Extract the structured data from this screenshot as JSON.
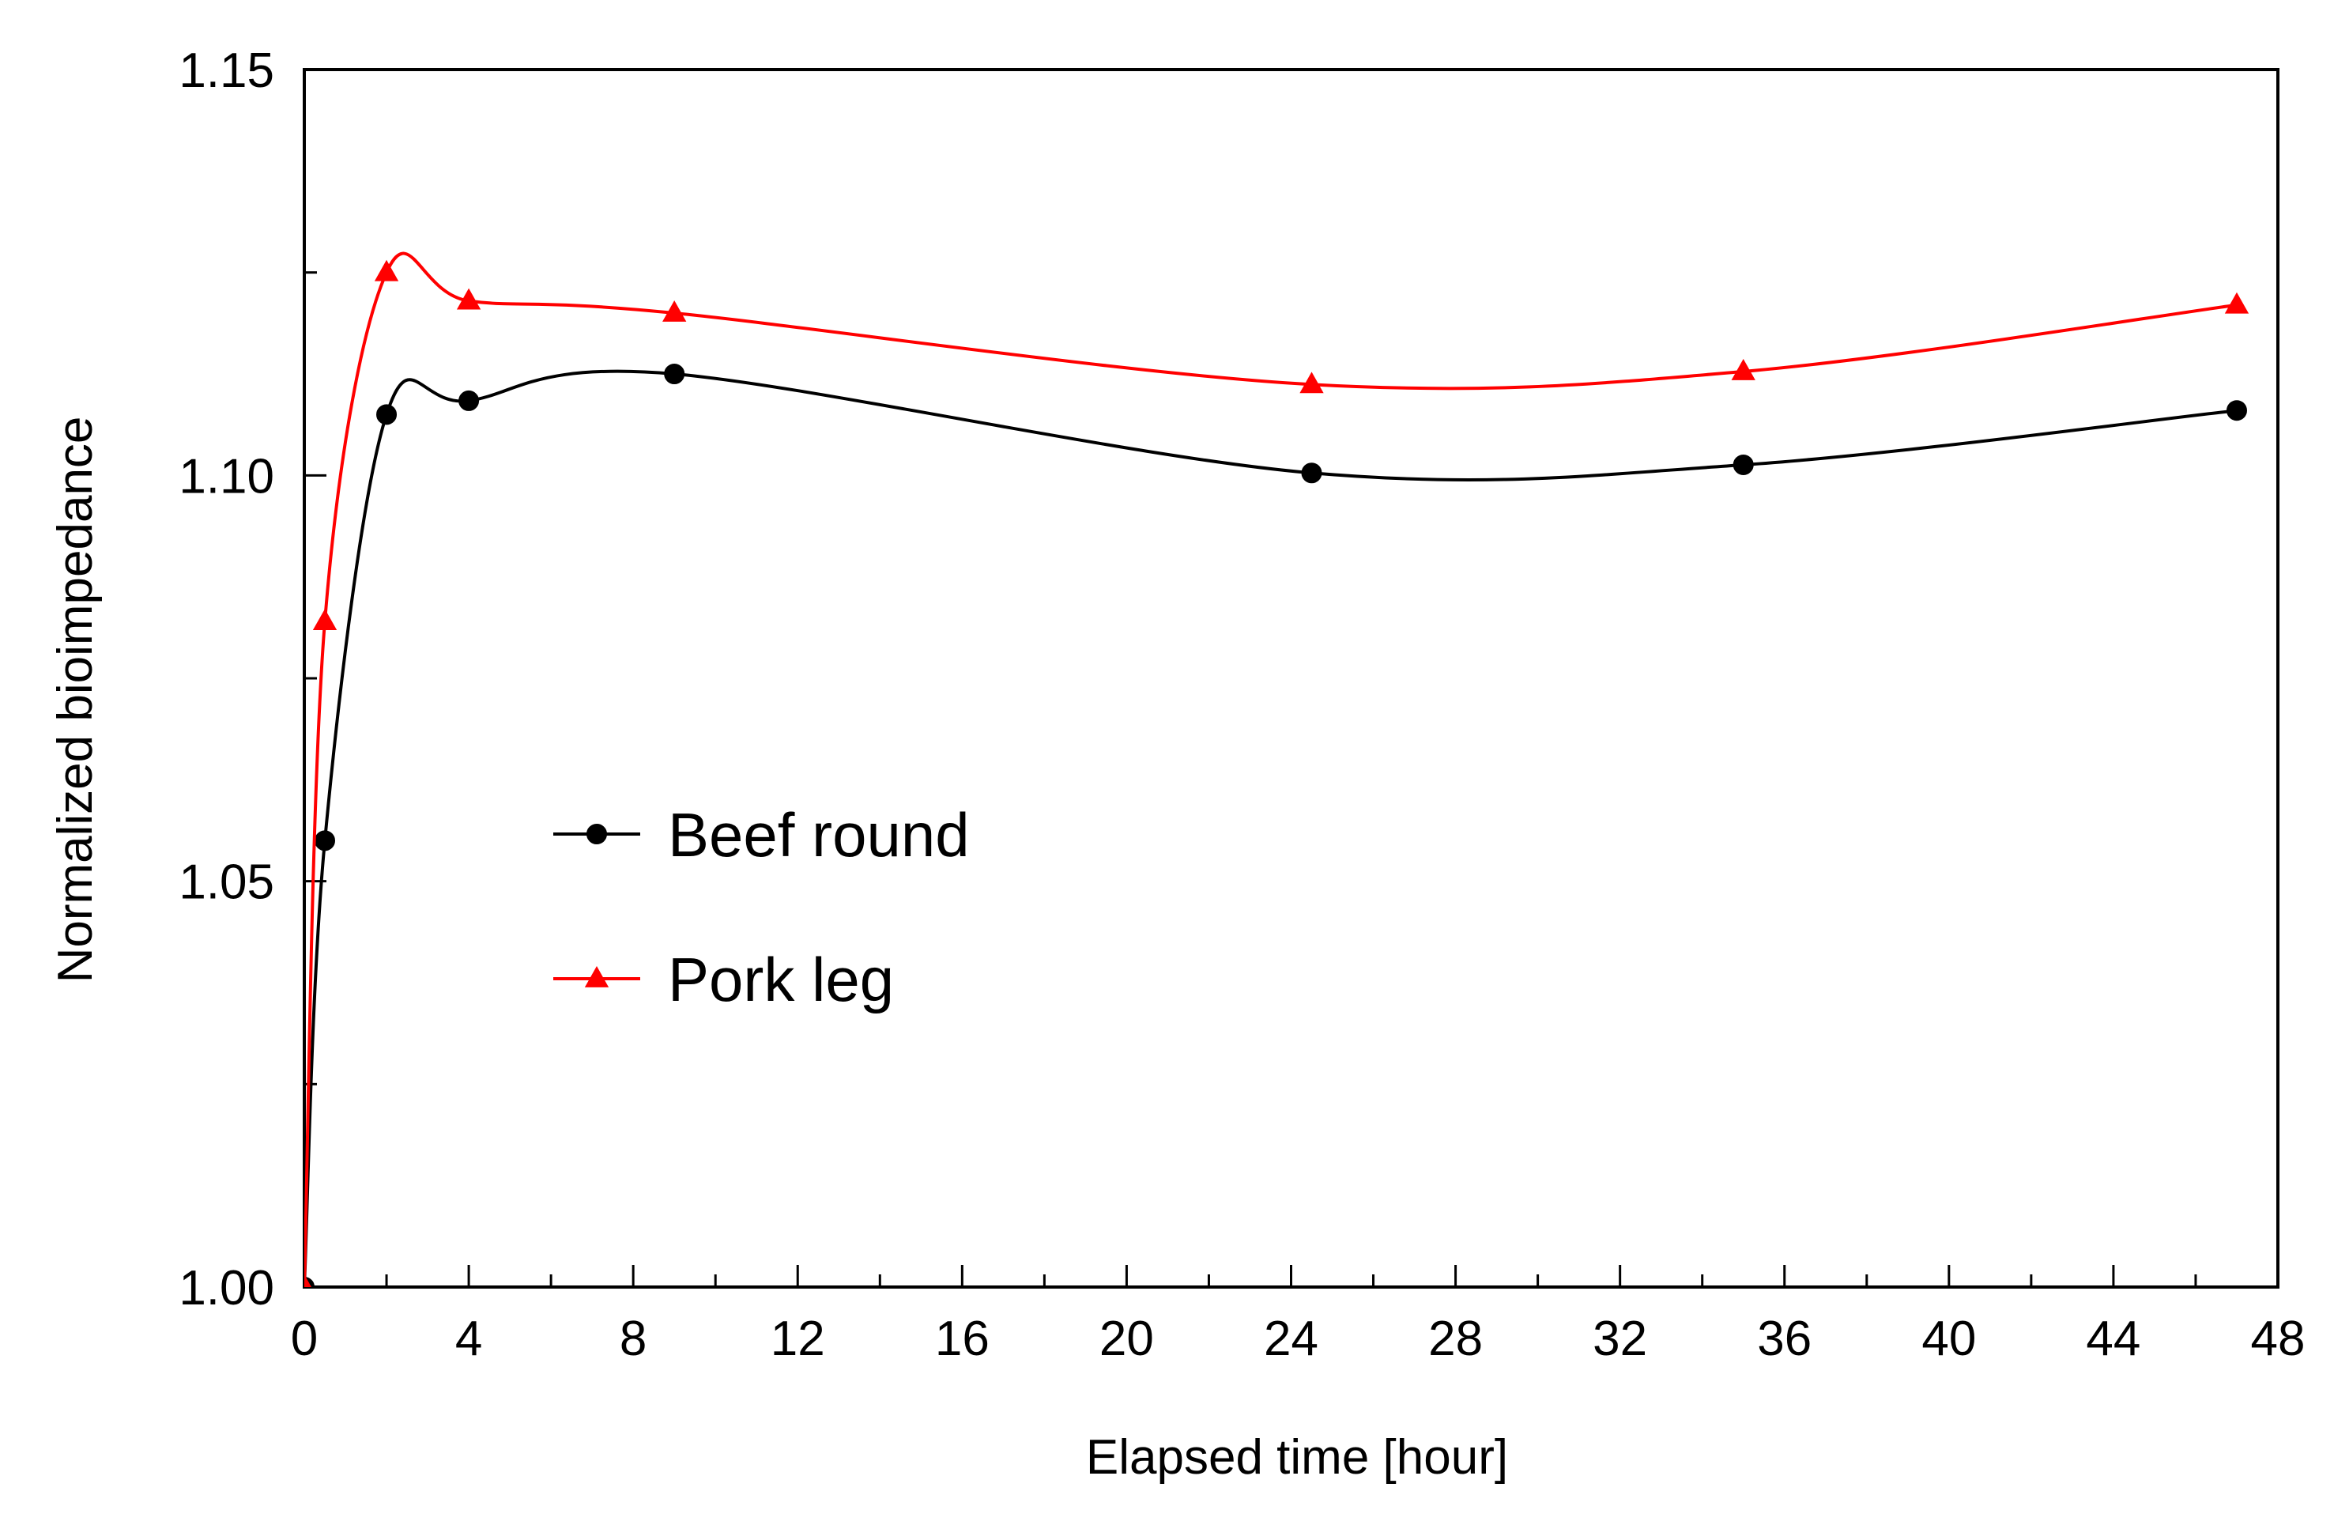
{
  "chart_data": {
    "type": "line",
    "title": "",
    "xlabel": "Elapsed time [hour]",
    "ylabel": "Normalized bioimpedance",
    "xlim": [
      0,
      48
    ],
    "ylim": [
      1.0,
      1.15
    ],
    "x_ticks": [
      "0",
      "4",
      "8",
      "12",
      "16",
      "20",
      "24",
      "28",
      "32",
      "36",
      "40",
      "44",
      "48"
    ],
    "y_ticks": [
      "1.00",
      "1.05",
      "1.10",
      "1.15"
    ],
    "grid": false,
    "legend_position": "center-left",
    "series": [
      {
        "name": "Beef round",
        "color": "#000000",
        "marker": "circle",
        "x": [
          0,
          0.5,
          2,
          4,
          9,
          24.5,
          35,
          47
        ],
        "y": [
          1.0,
          1.055,
          1.1075,
          1.1092,
          1.1125,
          1.1003,
          1.1013,
          1.108
        ]
      },
      {
        "name": "Pork leg",
        "color": "#ff0000",
        "marker": "triangle",
        "x": [
          0,
          0.5,
          2,
          4,
          9,
          24.5,
          35,
          47
        ],
        "y": [
          1.0,
          1.082,
          1.125,
          1.1215,
          1.12,
          1.1112,
          1.1128,
          1.121
        ]
      }
    ]
  }
}
